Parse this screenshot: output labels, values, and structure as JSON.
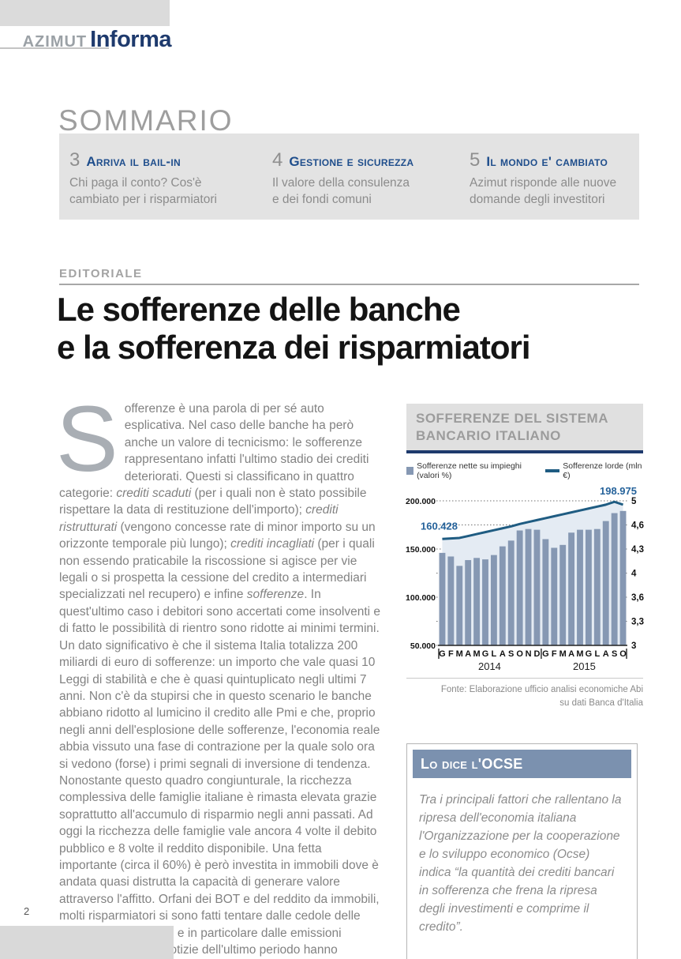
{
  "header": {
    "brand_primary": "AZIMUT",
    "brand_secondary": "Informa"
  },
  "sommario": {
    "title": "SOMMARIO",
    "items": [
      {
        "number": "3",
        "title": "Arriva il bail-in",
        "desc_line1": "Chi paga il conto? Cos'è",
        "desc_line2": "cambiato per i risparmiatori"
      },
      {
        "number": "4",
        "title": "Gestione e sicurezza",
        "desc_line1": "Il valore della consulenza",
        "desc_line2": "e dei fondi comuni"
      },
      {
        "number": "5",
        "title": "Il mondo e' cambiato",
        "desc_line1": "Azimut risponde alle nuove",
        "desc_line2": "domande degli investitori"
      }
    ]
  },
  "editorial": {
    "label": "EDITORIALE",
    "title_line1": "Le sofferenze delle banche",
    "title_line2": "e la sofferenza dei risparmiatori",
    "drop_cap": "S",
    "body_segments": [
      {
        "italic": false,
        "text": "offerenze è una parola di per sé auto esplicativa. Nel caso delle banche ha però anche un valore di tecnicismo: le sofferenze rappresentano infatti l'ultimo stadio dei crediti deteriorati. Questi si classificano in quattro categorie: "
      },
      {
        "italic": true,
        "text": "crediti scaduti"
      },
      {
        "italic": false,
        "text": " (per i quali non è stato possibile rispettare la data di restituzione dell'importo); "
      },
      {
        "italic": true,
        "text": "crediti ristrutturati"
      },
      {
        "italic": false,
        "text": " (vengono concesse rate di minor importo su un orizzonte temporale più lungo); "
      },
      {
        "italic": true,
        "text": "crediti incagliati"
      },
      {
        "italic": false,
        "text": " (per i quali non essendo praticabile la riscossione si agisce per vie legali o si prospetta la cessione del credito a intermediari specializzati nel recupero) e infine "
      },
      {
        "italic": true,
        "text": "sofferenze"
      },
      {
        "italic": false,
        "text": ". In quest'ultimo caso i debitori sono accertati come insolventi e di fatto le possibilità di rientro sono ridotte ai minimi termini. Un dato significativo è che il sistema Italia totalizza 200 miliardi di euro di sofferenze: un importo che vale quasi 10 Leggi di stabilità e che è quasi quintuplicato negli ultimi 7 anni. Non c'è da stupirsi che in questo scenario le banche abbiano ridotto al lumicino il credito alle Pmi e che, proprio negli anni dell'esplosione delle sofferenze, l'economia reale abbia vissuto una fase di contrazione per la quale solo ora si vedono (forse) i primi segnali di inversione di tendenza. Nonostante questo quadro congiunturale, la ricchezza complessiva delle famiglie italiane è rimasta elevata grazie soprattutto all'accumulo di risparmio negli anni passati. Ad oggi la ricchezza delle famiglie vale ancora 4 volte il debito pubblico e 8 volte il reddito disponibile. Una fetta importante (circa il 60%) è però investita in immobili dove è andata quasi distrutta la capacità di generare valore attraverso l'affitto. Orfani dei BOT e del reddito da immobili, molti risparmiatori si sono fatti tentare dalle cedole delle obbligazioni bancarie e in particolare dalle emissioni subordinate. Ma le notizie dell'ultimo periodo hanno evidenziato come in molti casi questa decisione non si sia rivelata “fortunata”, anzi…"
      }
    ]
  },
  "chart_data": {
    "type": "bar",
    "overlay": "line",
    "title": "SOFFERENZE DEL SISTEMA BANCARIO ITALIANO",
    "title_line1": "SOFFERENZE DEL SISTEMA",
    "title_line2": "BANCARIO ITALIANO",
    "categories": [
      "G",
      "F",
      "M",
      "A",
      "M",
      "G",
      "L",
      "A",
      "S",
      "O",
      "N",
      "D",
      "G",
      "F",
      "M",
      "A",
      "M",
      "G",
      "L",
      "A",
      "S",
      "O"
    ],
    "group_labels": [
      "2014",
      "2015"
    ],
    "series": [
      {
        "name": "Sofferenze nette su impieghi (valori %)",
        "type": "bar",
        "axis": "right",
        "values": [
          4.28,
          4.23,
          4.1,
          4.18,
          4.21,
          4.19,
          4.25,
          4.37,
          4.45,
          4.59,
          4.61,
          4.6,
          4.47,
          4.35,
          4.39,
          4.56,
          4.6,
          4.6,
          4.61,
          4.72,
          4.83,
          4.86
        ]
      },
      {
        "name": "Sofferenze lorde (mln €)",
        "type": "line",
        "axis": "left",
        "values": [
          160428,
          161000,
          161500,
          163500,
          165500,
          167500,
          169500,
          171500,
          173500,
          176000,
          178000,
          180000,
          182000,
          184000,
          186000,
          188000,
          190000,
          192000,
          194000,
          196000,
          198975,
          196000
        ]
      }
    ],
    "left_axis": {
      "ticks": [
        "200.000",
        "150.000",
        "100.000",
        "50.000"
      ],
      "min": 50000,
      "max": 200000
    },
    "right_axis": {
      "ticks": [
        "5",
        "4,6",
        "4,3",
        "4",
        "3,6",
        "3,3",
        "3"
      ],
      "min": 3,
      "max": 5
    },
    "annotations": {
      "start_label": "160.428",
      "peak_label": "198.975"
    },
    "source_line1": "Fonte: Elaborazione ufficio analisi economiche Abi",
    "source_line2": "su dati Banca d'Italia",
    "colors": {
      "bar": "#8698b3",
      "line": "#1f5c82",
      "area": "#e4ebf3",
      "annotation": "#26639b",
      "accent": "#1e3a6d"
    },
    "legend_position": "top",
    "grid": true
  },
  "ocse": {
    "title": "Lo dice l'OCSE",
    "text": "Tra i principali fattori che rallentano la ripresa dell'economia italiana l'Organizzazione per la cooperazione e lo sviluppo economico (Ocse) indica “la quantità dei crediti bancari in sofferenza che frena la ripresa degli investimenti e comprime il credito”."
  },
  "footer": {
    "page_number": "2"
  }
}
